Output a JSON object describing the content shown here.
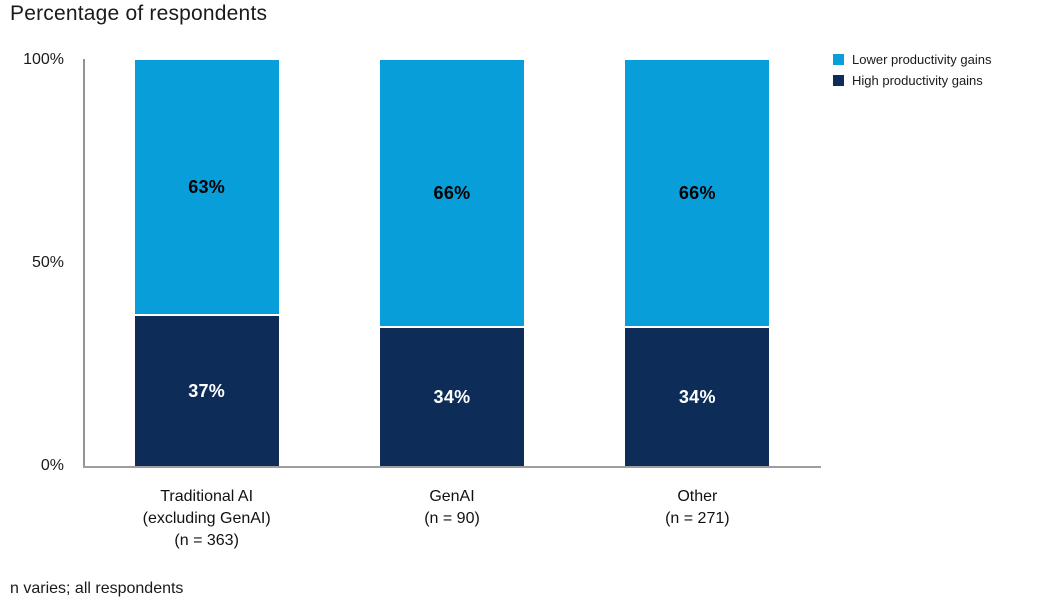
{
  "title": "Percentage of respondents",
  "footnote": "n varies; all respondents",
  "colors": {
    "lower_productivity": "#089ED9",
    "high_productivity": "#0D2C58",
    "axis_line": "#969696",
    "text": "#1A1A1A",
    "value_label_on_lower": "#000000",
    "value_label_on_high": "#FFFFFF",
    "segment_gap": "#FFFFFF"
  },
  "legend": {
    "items": [
      {
        "label": "Lower productivity gains",
        "swatch_color": "#089ED9"
      },
      {
        "label": "High productivity gains",
        "swatch_color": "#0D2C58"
      }
    ]
  },
  "y_axis": {
    "ticks": [
      {
        "label": "100%",
        "value": 100
      },
      {
        "label": "50%",
        "value": 50
      },
      {
        "label": "0%",
        "value": 0
      }
    ]
  },
  "chart_data": {
    "type": "bar",
    "stacked": true,
    "title": "Percentage of respondents",
    "xlabel": "",
    "ylabel": "Percentage of respondents",
    "ylim": [
      0,
      100
    ],
    "grid": false,
    "legend_position": "top-right",
    "categories": [
      "Traditional AI\n(excluding GenAI)\n(n = 363)",
      "GenAI\n(n = 90)",
      "Other\n(n = 271)"
    ],
    "series": [
      {
        "name": "Lower productivity gains",
        "color": "#089ED9",
        "values": [
          63,
          66,
          66
        ],
        "value_labels": [
          "63%",
          "66%",
          "66%"
        ]
      },
      {
        "name": "High productivity gains",
        "color": "#0D2C58",
        "values": [
          37,
          34,
          34
        ],
        "value_labels": [
          "37%",
          "34%",
          "34%"
        ]
      }
    ],
    "footnote": "n varies; all respondents"
  }
}
